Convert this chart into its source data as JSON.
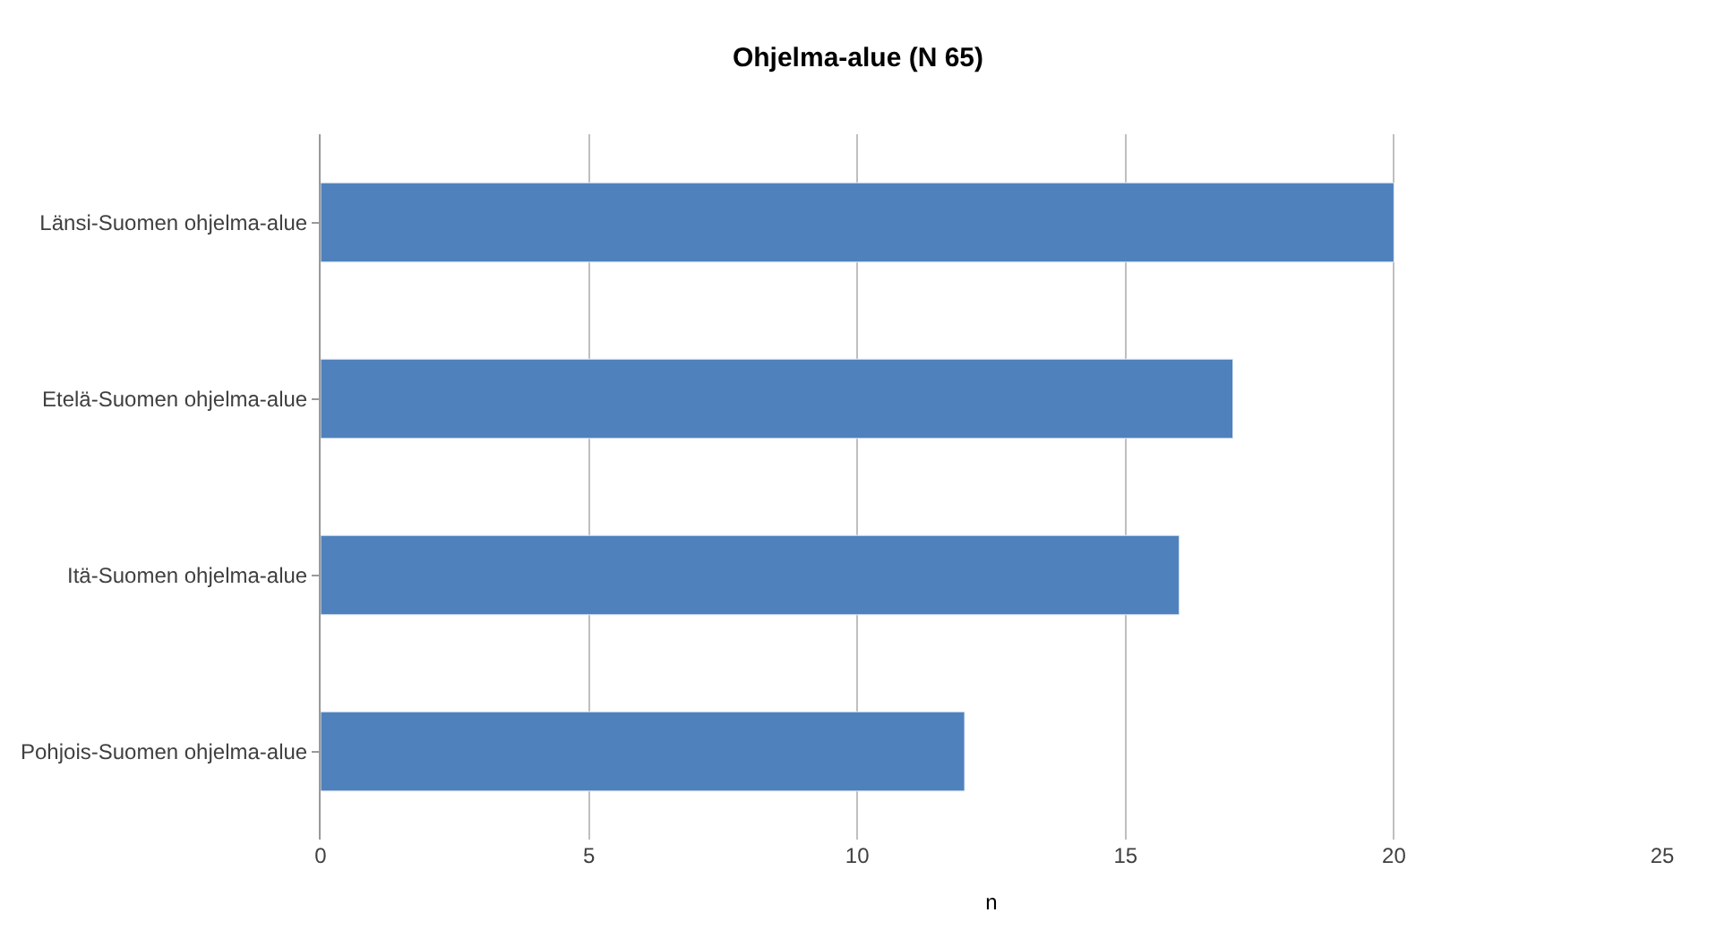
{
  "chart_data": {
    "type": "bar",
    "orientation": "horizontal",
    "title": "Ohjelma-alue (N 65)",
    "xlabel": "n",
    "categories": [
      "Länsi-Suomen ohjelma-alue",
      "Etelä-Suomen ohjelma-alue",
      "Itä-Suomen ohjelma-alue",
      "Pohjois-Suomen ohjelma-alue"
    ],
    "values": [
      20,
      17,
      16,
      12
    ],
    "color": "#4f81bd",
    "xlim": [
      0,
      25
    ],
    "xticks": [
      0,
      5,
      10,
      15,
      20,
      25
    ],
    "grid": "x"
  }
}
